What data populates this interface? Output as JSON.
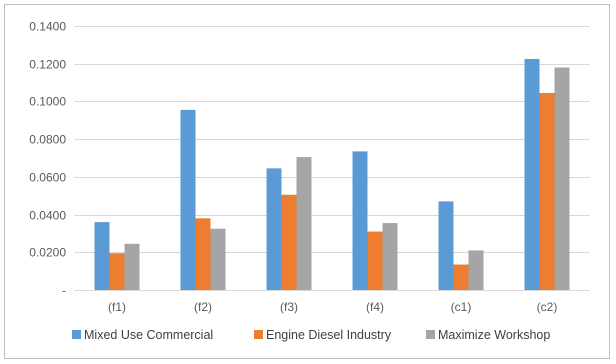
{
  "chart_data": {
    "type": "bar",
    "categories": [
      "(f1)",
      "(f2)",
      "(f3)",
      "(f4)",
      "(c1)",
      "(c2)"
    ],
    "series": [
      {
        "name": "Mixed Use Commercial",
        "color": "#5b9bd5",
        "values": [
          0.036,
          0.0955,
          0.0645,
          0.0735,
          0.047,
          0.1225
        ]
      },
      {
        "name": "Engine Diesel Industry",
        "color": "#ed7d31",
        "values": [
          0.0195,
          0.038,
          0.0505,
          0.031,
          0.0135,
          0.1045
        ]
      },
      {
        "name": "Maximize Workshop",
        "color": "#a5a5a5",
        "values": [
          0.0245,
          0.0325,
          0.0705,
          0.0355,
          0.021,
          0.118
        ]
      }
    ],
    "yticks": [
      0,
      0.02,
      0.04,
      0.06,
      0.08,
      0.1,
      0.12,
      0.14
    ],
    "ytick_labels": [
      "-",
      "0.0200",
      "0.0400",
      "0.0600",
      "0.0800",
      "0.1000",
      "0.1200",
      "0.1400"
    ],
    "ylim": [
      0,
      0.14
    ],
    "grid": true,
    "legend_position": "bottom"
  }
}
